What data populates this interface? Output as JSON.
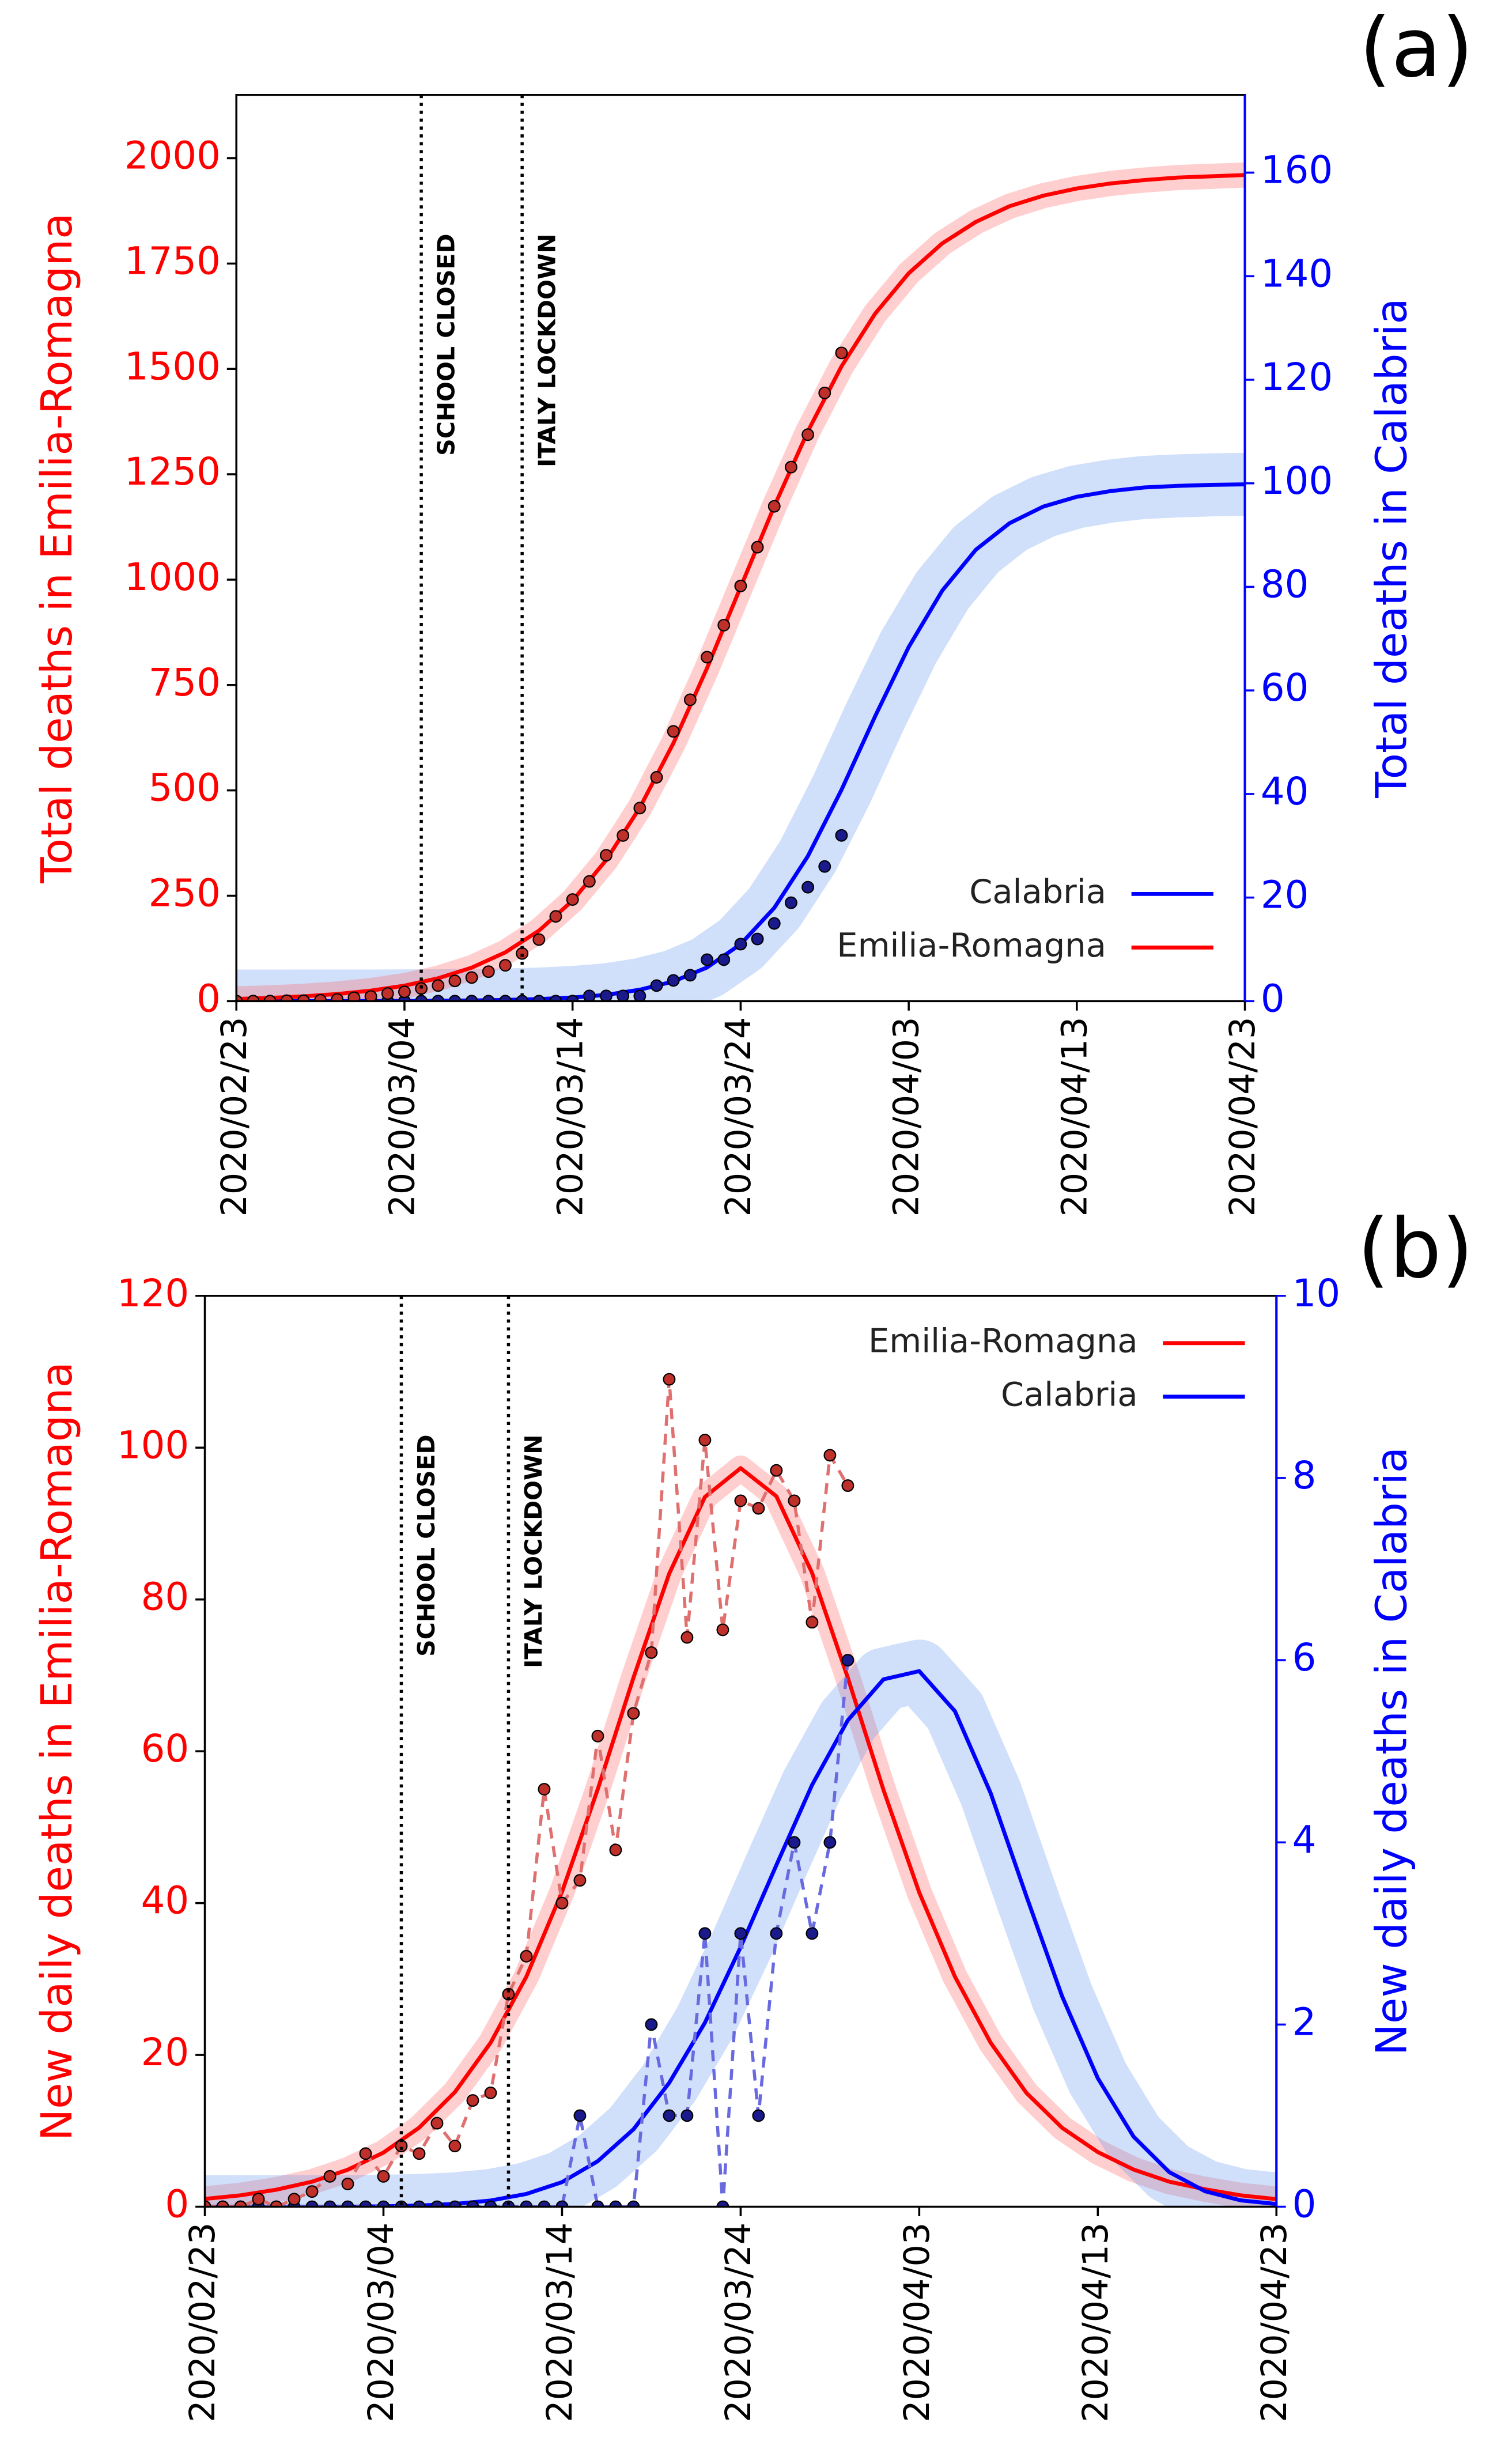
{
  "chart_data": [
    {
      "type": "line",
      "label": "(a)",
      "ylabel": "Total deaths in Emilia-Romagna",
      "y2label": "Total deaths in Calabria",
      "ylabel_color": "#ff0000",
      "y2label_color": "#0000ff",
      "xlim": [
        "2020/02/23",
        "2020/04/23"
      ],
      "xticks": [
        "2020/02/23",
        "2020/03/04",
        "2020/03/14",
        "2020/03/24",
        "2020/04/03",
        "2020/04/13",
        "2020/04/23"
      ],
      "ylim": [
        0,
        2150
      ],
      "yticks": [
        0,
        250,
        500,
        750,
        1000,
        1250,
        1500,
        1750,
        2000
      ],
      "y2lim": [
        0,
        175
      ],
      "y2ticks": [
        0,
        20,
        40,
        60,
        80,
        100,
        120,
        140,
        160
      ],
      "legend": "lower right",
      "annotations": [
        {
          "text": "SCHOOL CLOSED",
          "x": "2020/03/05"
        },
        {
          "text": "ITALY LOCKDOWN",
          "x": "2020/03/11"
        }
      ],
      "x": [
        "2020/02/23",
        "2020/02/25",
        "2020/02/27",
        "2020/02/29",
        "2020/03/02",
        "2020/03/04",
        "2020/03/06",
        "2020/03/08",
        "2020/03/10",
        "2020/03/12",
        "2020/03/14",
        "2020/03/16",
        "2020/03/18",
        "2020/03/20",
        "2020/03/22",
        "2020/03/24",
        "2020/03/26",
        "2020/03/28",
        "2020/03/30",
        "2020/04/01",
        "2020/04/03",
        "2020/04/05",
        "2020/04/07",
        "2020/04/09",
        "2020/04/11",
        "2020/04/13",
        "2020/04/15",
        "2020/04/17",
        "2020/04/19",
        "2020/04/21",
        "2020/04/23"
      ],
      "series": [
        {
          "name": "Calabria",
          "color": "#0000ff",
          "band_color": "#6495ed",
          "axis": "y2",
          "values": [
            0,
            0,
            0.01,
            0.01,
            0.02,
            0.04,
            0.07,
            0.13,
            0.23,
            0.4,
            0.7,
            1.2,
            2.2,
            3.8,
            6.5,
            11.0,
            18.0,
            28.0,
            40.8,
            55.0,
            68.4,
            79.3,
            87.2,
            92.3,
            95.5,
            97.4,
            98.5,
            99.2,
            99.5,
            99.7,
            99.8
          ]
        },
        {
          "name": "Emilia-Romagna",
          "color": "#ff0000",
          "band_color": "#ff6060",
          "axis": "y",
          "values": [
            5.2,
            7.6,
            11.4,
            16.8,
            24.9,
            36.7,
            54.1,
            79.4,
            115.7,
            167.1,
            238.5,
            334.7,
            459,
            612,
            790,
            982.5,
            1174,
            1352,
            1506,
            1631,
            1727,
            1798,
            1849,
            1886,
            1911,
            1928,
            1940,
            1948,
            1954,
            1957,
            1960
          ]
        }
      ],
      "x_obs": [
        "2020/02/23",
        "2020/02/24",
        "2020/02/25",
        "2020/02/26",
        "2020/02/27",
        "2020/02/28",
        "2020/02/29",
        "2020/03/01",
        "2020/03/02",
        "2020/03/03",
        "2020/03/04",
        "2020/03/05",
        "2020/03/06",
        "2020/03/07",
        "2020/03/08",
        "2020/03/09",
        "2020/03/10",
        "2020/03/11",
        "2020/03/12",
        "2020/03/13",
        "2020/03/14",
        "2020/03/15",
        "2020/03/16",
        "2020/03/17",
        "2020/03/18",
        "2020/03/19",
        "2020/03/20",
        "2020/03/21",
        "2020/03/22",
        "2020/03/23",
        "2020/03/24",
        "2020/03/25",
        "2020/03/26",
        "2020/03/27",
        "2020/03/28",
        "2020/03/29",
        "2020/03/30"
      ],
      "observed": [
        {
          "color": "#1a1a8c",
          "line_color": "#6a6ae0",
          "axis": "y2",
          "dashed": false,
          "values": [
            0,
            0,
            0,
            0,
            0,
            0,
            0,
            0,
            0,
            0,
            0,
            0,
            0,
            0,
            0,
            0,
            0,
            0,
            0,
            0,
            0,
            1,
            1,
            1,
            1,
            3,
            4,
            5,
            8,
            8,
            11,
            12,
            15,
            19,
            22,
            26,
            32
          ]
        },
        {
          "color": "#c0302a",
          "line_color": "#e07070",
          "axis": "y",
          "dashed": false,
          "values": [
            0,
            0,
            0,
            1,
            1,
            2,
            4,
            8,
            11,
            18,
            22,
            30,
            37,
            48,
            56,
            70,
            85,
            113,
            146,
            201,
            241,
            284,
            346,
            393,
            458,
            531,
            640,
            715,
            816,
            892,
            985,
            1077,
            1174,
            1267,
            1344,
            1443,
            1538
          ]
        }
      ]
    },
    {
      "type": "line",
      "label": "(b)",
      "ylabel": "New daily deaths in Emilia-Romagna",
      "y2label": "New daily deaths in Calabria",
      "ylabel_color": "#ff0000",
      "y2label_color": "#0000ff",
      "xlim": [
        "2020/02/23",
        "2020/04/23"
      ],
      "xticks": [
        "2020/02/23",
        "2020/03/04",
        "2020/03/14",
        "2020/03/24",
        "2020/04/03",
        "2020/04/13",
        "2020/04/23"
      ],
      "ylim": [
        0,
        120
      ],
      "yticks": [
        0,
        20,
        40,
        60,
        80,
        100,
        120
      ],
      "y2lim": [
        0,
        10
      ],
      "y2ticks": [
        0,
        2,
        4,
        6,
        8,
        10
      ],
      "legend": "upper right",
      "annotations": [
        {
          "text": "SCHOOL CLOSED",
          "x": "2020/03/05"
        },
        {
          "text": "ITALY LOCKDOWN",
          "x": "2020/03/11"
        }
      ],
      "x": [
        "2020/02/23",
        "2020/02/25",
        "2020/02/27",
        "2020/02/29",
        "2020/03/02",
        "2020/03/04",
        "2020/03/06",
        "2020/03/08",
        "2020/03/10",
        "2020/03/12",
        "2020/03/14",
        "2020/03/16",
        "2020/03/18",
        "2020/03/20",
        "2020/03/22",
        "2020/03/24",
        "2020/03/26",
        "2020/03/28",
        "2020/03/30",
        "2020/04/01",
        "2020/04/03",
        "2020/04/05",
        "2020/04/07",
        "2020/04/09",
        "2020/04/11",
        "2020/04/13",
        "2020/04/15",
        "2020/04/17",
        "2020/04/19",
        "2020/04/21",
        "2020/04/23"
      ],
      "series": [
        {
          "name": "Emilia-Romagna",
          "color": "#ff0000",
          "band_color": "#ff6060",
          "axis": "y",
          "values": [
            1.03,
            1.5,
            2.24,
            3.3,
            4.87,
            7.13,
            10.42,
            15.1,
            21.6,
            30.3,
            41.5,
            55.0,
            69.7,
            83.4,
            93.5,
            97.3,
            93.6,
            83.5,
            69.7,
            54.9,
            41.4,
            30.3,
            21.6,
            15.0,
            10.4,
            7.2,
            4.9,
            3.3,
            2.3,
            1.5,
            1.0
          ]
        },
        {
          "name": "Calabria",
          "color": "#0000ff",
          "band_color": "#6495ed",
          "axis": "y2",
          "values": [
            0,
            0,
            0,
            0,
            0,
            0.005,
            0.013,
            0.031,
            0.068,
            0.14,
            0.27,
            0.5,
            0.85,
            1.36,
            2.02,
            2.85,
            3.75,
            4.63,
            5.34,
            5.79,
            5.88,
            5.44,
            4.54,
            3.41,
            2.31,
            1.41,
            0.77,
            0.38,
            0.17,
            0.07,
            0.03
          ]
        }
      ],
      "x_obs": [
        "2020/02/23",
        "2020/02/24",
        "2020/02/25",
        "2020/02/26",
        "2020/02/27",
        "2020/02/28",
        "2020/02/29",
        "2020/03/01",
        "2020/03/02",
        "2020/03/03",
        "2020/03/04",
        "2020/03/05",
        "2020/03/06",
        "2020/03/07",
        "2020/03/08",
        "2020/03/09",
        "2020/03/10",
        "2020/03/11",
        "2020/03/12",
        "2020/03/13",
        "2020/03/14",
        "2020/03/15",
        "2020/03/16",
        "2020/03/17",
        "2020/03/18",
        "2020/03/19",
        "2020/03/20",
        "2020/03/21",
        "2020/03/22",
        "2020/03/23",
        "2020/03/24",
        "2020/03/25",
        "2020/03/26",
        "2020/03/27",
        "2020/03/28",
        "2020/03/29",
        "2020/03/30"
      ],
      "observed": [
        {
          "color": "#1a1a8c",
          "line_color": "#6a6ae0",
          "axis": "y2",
          "dashed": true,
          "values": [
            0,
            0,
            0,
            0,
            0,
            0,
            0,
            0,
            0,
            0,
            0,
            0,
            0,
            0,
            0,
            0,
            0,
            0,
            0,
            0,
            0,
            1,
            0,
            0,
            0,
            2,
            1,
            1,
            3,
            0,
            3,
            1,
            3,
            4,
            3,
            4,
            6
          ]
        },
        {
          "color": "#c0302a",
          "line_color": "#e07070",
          "axis": "y",
          "dashed": true,
          "values": [
            0,
            0,
            0,
            1,
            0,
            1,
            2,
            4,
            3,
            7,
            4,
            8,
            7,
            11,
            8,
            14,
            15,
            28,
            33,
            55,
            40,
            43,
            62,
            47,
            65,
            73,
            109,
            75,
            101,
            76,
            93,
            92,
            97,
            93,
            77,
            99,
            95
          ]
        }
      ]
    }
  ]
}
